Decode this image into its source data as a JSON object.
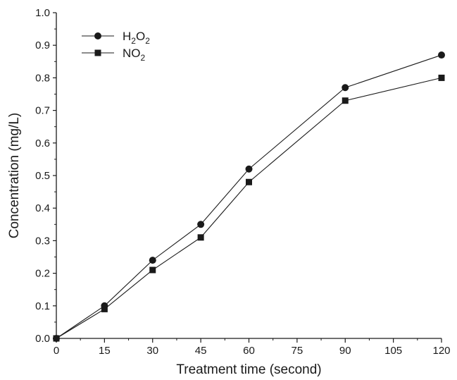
{
  "chart_data": {
    "type": "line",
    "title": "",
    "xlabel": "Treatment time (second)",
    "ylabel": "Concentration (mg/L)",
    "x": [
      0,
      15,
      30,
      45,
      60,
      90,
      120
    ],
    "xlim": [
      0,
      120
    ],
    "ylim": [
      0,
      1.0
    ],
    "x_ticks": [
      "0",
      "15",
      "30",
      "45",
      "60",
      "75",
      "90",
      "105",
      "120"
    ],
    "y_ticks": [
      "0.0",
      "0.1",
      "0.2",
      "0.3",
      "0.4",
      "0.5",
      "0.6",
      "0.7",
      "0.8",
      "0.9",
      "1.0"
    ],
    "grid": false,
    "legend_position": "top-left",
    "series": [
      {
        "key": "h2o2",
        "name": "H2O2",
        "legend": {
          "base": "H",
          "sub1": "2",
          "mid": "O",
          "sub2": "2"
        },
        "marker": "circle",
        "color": "#1a1a1a",
        "values": [
          0.0,
          0.1,
          0.24,
          0.35,
          0.52,
          0.77,
          0.87
        ]
      },
      {
        "key": "no2",
        "name": "NO2",
        "legend": {
          "base": "NO",
          "sub1": "2",
          "mid": "",
          "sub2": ""
        },
        "marker": "square",
        "color": "#1a1a1a",
        "values": [
          0.0,
          0.09,
          0.21,
          0.31,
          0.48,
          0.73,
          0.8
        ]
      }
    ]
  }
}
